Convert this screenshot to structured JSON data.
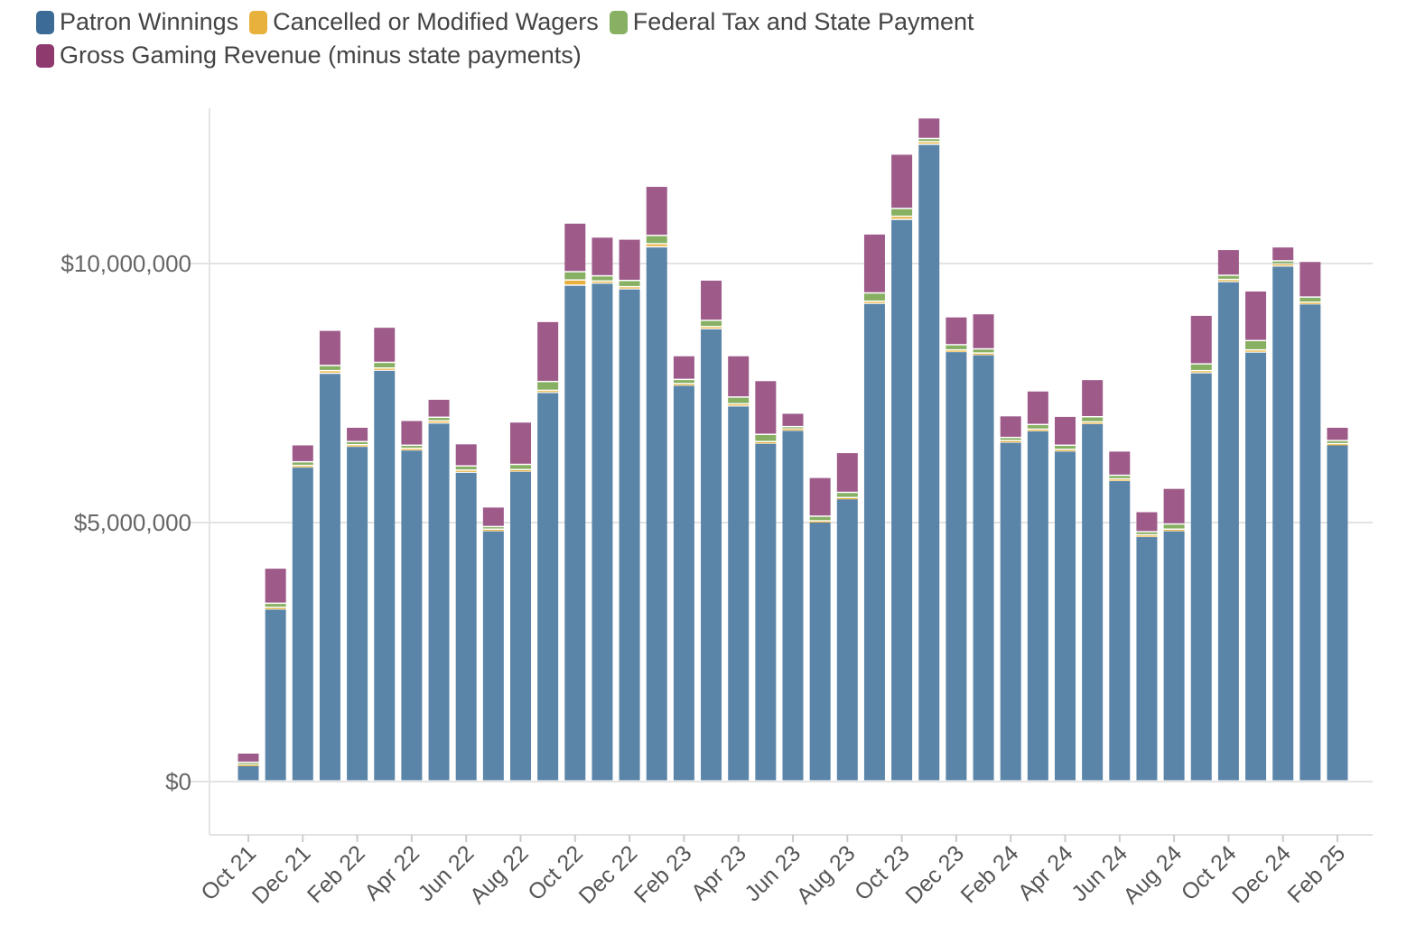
{
  "chart_data": {
    "type": "bar",
    "stacked": true,
    "title": "",
    "xlabel": "",
    "ylabel": "",
    "ylim": [
      -1000000,
      13000000
    ],
    "y_ticks": [
      0,
      5000000,
      10000000
    ],
    "y_tick_labels": [
      "$0",
      "$5,000,000",
      "$10,000,000"
    ],
    "x_tick_labels": [
      "Oct 21",
      "Dec 21",
      "Feb 22",
      "Apr 22",
      "Jun 22",
      "Aug 22",
      "Oct 22",
      "Dec 22",
      "Feb 23",
      "Apr 23",
      "Jun 23",
      "Aug 23",
      "Oct 23",
      "Dec 23",
      "Feb 24",
      "Apr 24",
      "Jun 24",
      "Aug 24",
      "Oct 24",
      "Dec 24",
      "Feb 25"
    ],
    "categories": [
      "Oct 21",
      "Nov 21",
      "Dec 21",
      "Jan 22",
      "Feb 22",
      "Mar 22",
      "Apr 22",
      "May 22",
      "Jun 22",
      "Jul 22",
      "Aug 22",
      "Sep 22",
      "Oct 22",
      "Nov 22",
      "Dec 22",
      "Jan 23",
      "Feb 23",
      "Mar 23",
      "Apr 23",
      "May 23",
      "Jun 23",
      "Jul 23",
      "Aug 23",
      "Sep 23",
      "Oct 23",
      "Nov 23",
      "Dec 23",
      "Jan 24",
      "Feb 24",
      "Mar 24",
      "Apr 24",
      "May 24",
      "Jun 24",
      "Jul 24",
      "Aug 24",
      "Sep 24",
      "Oct 24",
      "Nov 24",
      "Dec 24",
      "Jan 25",
      "Feb 25"
    ],
    "series": [
      {
        "name": "Patron Winnings",
        "color": "#5a85a8",
        "values": [
          300000,
          3320000,
          6060000,
          7870000,
          6460000,
          7930000,
          6390000,
          6910000,
          5960000,
          4830000,
          5980000,
          7500000,
          9570000,
          9610000,
          9500000,
          10310000,
          7640000,
          8730000,
          7240000,
          6520000,
          6770000,
          5000000,
          5450000,
          9220000,
          10840000,
          12290000,
          8290000,
          8230000,
          6540000,
          6760000,
          6370000,
          6900000,
          5800000,
          4720000,
          4830000,
          7880000,
          9640000,
          8280000,
          9940000,
          9210000,
          6490000
        ]
      },
      {
        "name": "Cancelled or Modified Wagers",
        "color": "#e8b13b",
        "values": [
          20000,
          30000,
          30000,
          50000,
          30000,
          40000,
          30000,
          40000,
          40000,
          30000,
          30000,
          40000,
          100000,
          40000,
          40000,
          60000,
          30000,
          40000,
          40000,
          30000,
          30000,
          20000,
          20000,
          40000,
          60000,
          50000,
          30000,
          30000,
          30000,
          30000,
          30000,
          30000,
          30000,
          30000,
          30000,
          40000,
          40000,
          40000,
          40000,
          30000,
          20000
        ]
      },
      {
        "name": "Federal Tax and State Payment",
        "color": "#88b063",
        "values": [
          40000,
          80000,
          70000,
          100000,
          60000,
          110000,
          60000,
          70000,
          80000,
          50000,
          100000,
          170000,
          160000,
          100000,
          120000,
          160000,
          80000,
          120000,
          130000,
          140000,
          40000,
          90000,
          100000,
          160000,
          150000,
          60000,
          100000,
          80000,
          60000,
          90000,
          80000,
          100000,
          70000,
          60000,
          100000,
          130000,
          80000,
          180000,
          60000,
          100000,
          60000
        ]
      },
      {
        "name": "Gross Gaming Revenue (minus state payments)",
        "color": "#9e5b8a",
        "values": [
          180000,
          680000,
          330000,
          680000,
          280000,
          680000,
          480000,
          350000,
          430000,
          380000,
          820000,
          1160000,
          940000,
          750000,
          800000,
          950000,
          460000,
          780000,
          800000,
          1040000,
          260000,
          750000,
          770000,
          1140000,
          1050000,
          400000,
          540000,
          680000,
          420000,
          650000,
          560000,
          720000,
          470000,
          390000,
          690000,
          940000,
          500000,
          960000,
          270000,
          690000,
          260000
        ]
      }
    ]
  }
}
